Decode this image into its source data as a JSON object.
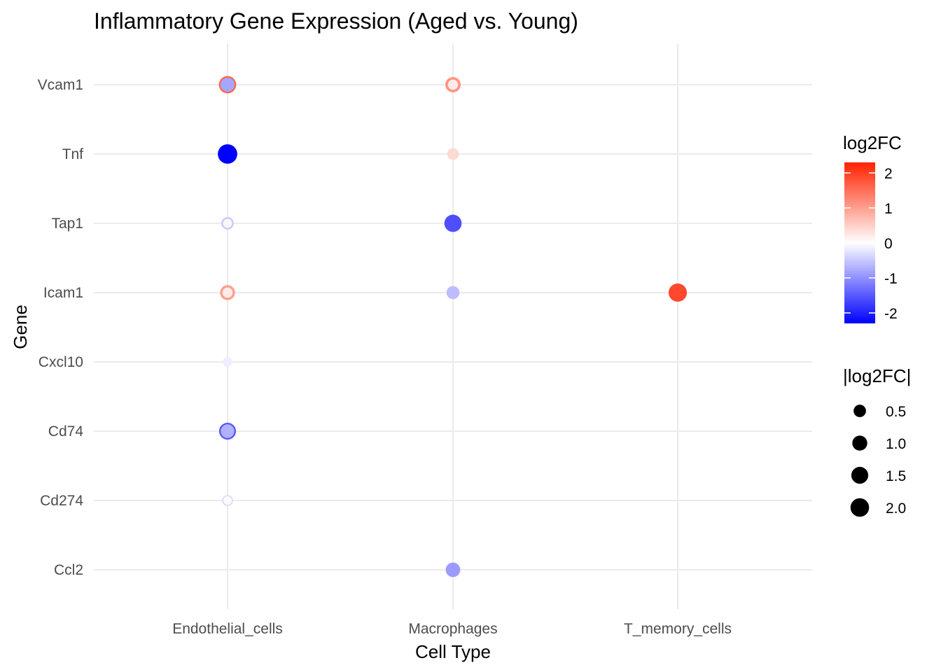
{
  "chart_data": {
    "type": "scatter",
    "title": "Inflammatory Gene Expression (Aged vs. Young)",
    "xlabel": "Cell Type",
    "ylabel": "Gene",
    "x_categories": [
      "Endothelial_cells",
      "Macrophages",
      "T_memory_cells"
    ],
    "y_categories": [
      "Ccl2",
      "Cd274",
      "Cd74",
      "Cxcl10",
      "Icam1",
      "Tap1",
      "Tnf",
      "Vcam1"
    ],
    "grid": true,
    "points": [
      {
        "cell_type": "Endothelial_cells",
        "gene": "Vcam1",
        "log2FC": 1.6
      },
      {
        "cell_type": "Endothelial_cells",
        "gene": "Vcam1",
        "log2FC": -0.8
      },
      {
        "cell_type": "Endothelial_cells",
        "gene": "Tnf",
        "log2FC": -2.3
      },
      {
        "cell_type": "Endothelial_cells",
        "gene": "Tap1",
        "log2FC": -0.5
      },
      {
        "cell_type": "Endothelial_cells",
        "gene": "Tap1",
        "log2FC": 0.1
      },
      {
        "cell_type": "Endothelial_cells",
        "gene": "Icam1",
        "log2FC": 1.0
      },
      {
        "cell_type": "Endothelial_cells",
        "gene": "Icam1",
        "log2FC": 0.2
      },
      {
        "cell_type": "Endothelial_cells",
        "gene": "Cxcl10",
        "log2FC": -0.15
      },
      {
        "cell_type": "Endothelial_cells",
        "gene": "Cd74",
        "log2FC": -1.5
      },
      {
        "cell_type": "Endothelial_cells",
        "gene": "Cd74",
        "log2FC": -0.7
      },
      {
        "cell_type": "Endothelial_cells",
        "gene": "Cd274",
        "log2FC": -0.3
      },
      {
        "cell_type": "Endothelial_cells",
        "gene": "Cd274",
        "log2FC": 0.05
      },
      {
        "cell_type": "Macrophages",
        "gene": "Vcam1",
        "log2FC": 1.1
      },
      {
        "cell_type": "Macrophages",
        "gene": "Vcam1",
        "log2FC": 0.2
      },
      {
        "cell_type": "Macrophages",
        "gene": "Tnf",
        "log2FC": 0.4
      },
      {
        "cell_type": "Macrophages",
        "gene": "Tap1",
        "log2FC": -1.6
      },
      {
        "cell_type": "Macrophages",
        "gene": "Icam1",
        "log2FC": -0.6
      },
      {
        "cell_type": "Macrophages",
        "gene": "Ccl2",
        "log2FC": -0.9
      },
      {
        "cell_type": "T_memory_cells",
        "gene": "Icam1",
        "log2FC": 1.9
      }
    ],
    "color_legend": {
      "title": "log2FC",
      "ticks": [
        2,
        1,
        0,
        -1,
        -2
      ],
      "range": [
        -2.3,
        2.3
      ],
      "low_color": "#0000ff",
      "mid_color": "#ffffff",
      "high_color": "#ff2200"
    },
    "size_legend": {
      "title": "|log2FC|",
      "values": [
        0.5,
        1.0,
        1.5,
        2.0
      ],
      "labels": [
        "0.5",
        "1.0",
        "1.5",
        "2.0"
      ]
    },
    "legend_position": "right"
  }
}
